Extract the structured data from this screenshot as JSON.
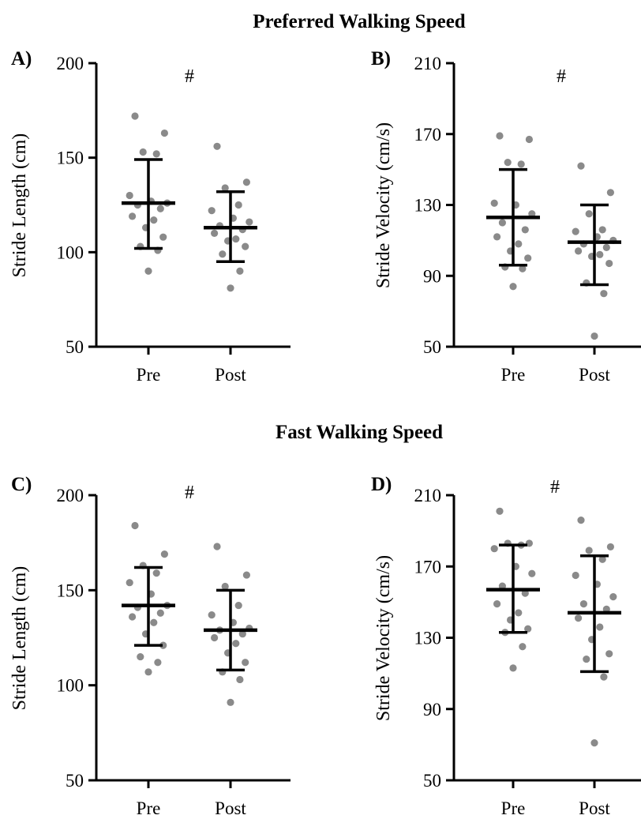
{
  "section_titles": [
    "Preferred Walking Speed",
    "Fast Walking Speed"
  ],
  "colors": {
    "points": "#8a8a8a",
    "lines": "#000000",
    "background": "#ffffff"
  },
  "chart_data": [
    {
      "type": "scatter",
      "panel_label": "A)",
      "section": "Preferred Walking Speed",
      "ylabel": "Stride Length (cm)",
      "ylim": [
        50,
        200
      ],
      "yticks": [
        50,
        100,
        150,
        200
      ],
      "categories": [
        "Pre",
        "Post"
      ],
      "annotation": "#",
      "grid": false,
      "groups": [
        {
          "name": "Pre",
          "mean": 126,
          "sd_low": 102,
          "sd_high": 149,
          "points": [
            172,
            163,
            153,
            152,
            130,
            127,
            126,
            125,
            123,
            119,
            117,
            113,
            108,
            103,
            101,
            90
          ]
        },
        {
          "name": "Post",
          "mean": 113,
          "sd_low": 95,
          "sd_high": 132,
          "points": [
            156,
            137,
            134,
            125,
            122,
            118,
            116,
            114,
            112,
            110,
            107,
            106,
            103,
            99,
            90,
            81
          ]
        }
      ]
    },
    {
      "type": "scatter",
      "panel_label": "B)",
      "section": "Preferred Walking Speed",
      "ylabel": "Stride Velocity (cm/s)",
      "ylim": [
        50,
        210
      ],
      "yticks": [
        50,
        90,
        130,
        170,
        210
      ],
      "categories": [
        "Pre",
        "Post"
      ],
      "annotation": "#",
      "grid": false,
      "groups": [
        {
          "name": "Pre",
          "mean": 123,
          "sd_low": 96,
          "sd_high": 150,
          "points": [
            169,
            167,
            154,
            153,
            131,
            130,
            125,
            120,
            116,
            112,
            108,
            104,
            100,
            95,
            94,
            84
          ]
        },
        {
          "name": "Post",
          "mean": 109,
          "sd_low": 85,
          "sd_high": 130,
          "points": [
            152,
            137,
            125,
            116,
            115,
            112,
            110,
            108,
            106,
            104,
            102,
            101,
            97,
            86,
            80,
            56
          ]
        }
      ]
    },
    {
      "type": "scatter",
      "panel_label": "C)",
      "section": "Fast Walking Speed",
      "ylabel": "Stride Length (cm)",
      "ylim": [
        50,
        200
      ],
      "yticks": [
        50,
        100,
        150,
        200
      ],
      "categories": [
        "Pre",
        "Post"
      ],
      "annotation": "#",
      "grid": false,
      "groups": [
        {
          "name": "Pre",
          "mean": 142,
          "sd_low": 121,
          "sd_high": 162,
          "points": [
            184,
            169,
            163,
            159,
            154,
            148,
            142,
            141,
            138,
            136,
            133,
            127,
            121,
            115,
            112,
            107
          ]
        },
        {
          "name": "Post",
          "mean": 129,
          "sd_low": 108,
          "sd_high": 150,
          "points": [
            173,
            158,
            152,
            142,
            137,
            133,
            130,
            129,
            127,
            125,
            122,
            117,
            112,
            107,
            103,
            91
          ]
        }
      ]
    },
    {
      "type": "scatter",
      "panel_label": "D)",
      "section": "Fast Walking Speed",
      "ylabel": "Stride Velocity (cm/s)",
      "ylim": [
        50,
        210
      ],
      "yticks": [
        50,
        90,
        130,
        170,
        210
      ],
      "categories": [
        "Pre",
        "Post"
      ],
      "annotation": "#",
      "grid": false,
      "groups": [
        {
          "name": "Pre",
          "mean": 157,
          "sd_low": 133,
          "sd_high": 182,
          "points": [
            201,
            183,
            183,
            182,
            180,
            170,
            166,
            159,
            155,
            149,
            144,
            140,
            135,
            133,
            125,
            113
          ]
        },
        {
          "name": "Post",
          "mean": 144,
          "sd_low": 111,
          "sd_high": 176,
          "points": [
            196,
            181,
            179,
            174,
            165,
            160,
            153,
            149,
            146,
            141,
            136,
            129,
            121,
            118,
            108,
            71
          ]
        }
      ]
    }
  ]
}
